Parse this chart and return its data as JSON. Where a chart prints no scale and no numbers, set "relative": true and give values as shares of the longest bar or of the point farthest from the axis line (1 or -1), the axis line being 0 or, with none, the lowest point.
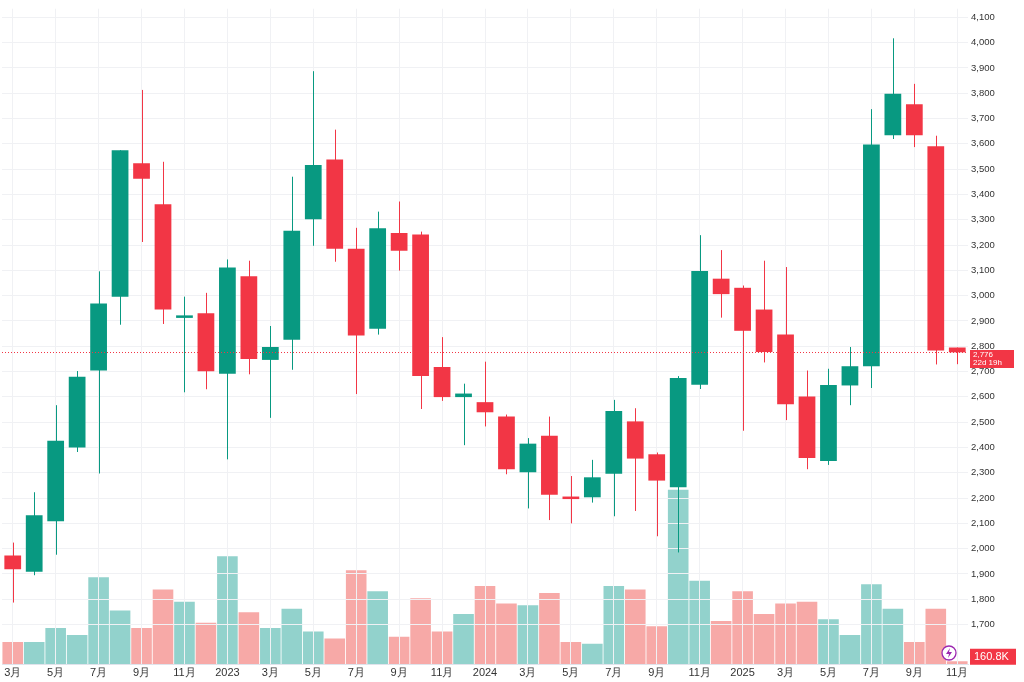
{
  "chart_data": [
    {
      "type": "candlestick",
      "categories": [
        "3月",
        null,
        "5月",
        null,
        "7月",
        null,
        "9月",
        null,
        "11月",
        null,
        "2023",
        null,
        "3月",
        null,
        "5月",
        null,
        "7月",
        null,
        "9月",
        null,
        "11月",
        null,
        "2024",
        null,
        "3月",
        null,
        "5月",
        null,
        "7月",
        null,
        "9月",
        null,
        "11月",
        null,
        "2025",
        null,
        "3月",
        null,
        "5月",
        null,
        "7月",
        null,
        "9月",
        null,
        "11月"
      ],
      "ohlc": [
        [
          1973,
          2024,
          1787,
          1919
        ],
        [
          1909,
          2223,
          1895,
          2132
        ],
        [
          2108,
          2567,
          1976,
          2426
        ],
        [
          2400,
          2702,
          2382,
          2679
        ],
        [
          2704,
          3096,
          2297,
          2969
        ],
        [
          2996,
          3575,
          2885,
          3575
        ],
        [
          3523,
          3813,
          3212,
          3462
        ],
        [
          3361,
          3529,
          2888,
          2945
        ],
        [
          2912,
          2996,
          2618,
          2922
        ],
        [
          2930,
          3011,
          2630,
          2701
        ],
        [
          2691,
          3143,
          2353,
          3111
        ],
        [
          3077,
          3138,
          2689,
          2750
        ],
        [
          2746,
          2880,
          2517,
          2797
        ],
        [
          2826,
          3470,
          2707,
          3256
        ],
        [
          3302,
          3887,
          3197,
          3516
        ],
        [
          3538,
          3656,
          3134,
          3185
        ],
        [
          3185,
          3268,
          2611,
          2842
        ],
        [
          2869,
          3332,
          2846,
          3266
        ],
        [
          3248,
          3372,
          3099,
          3177
        ],
        [
          3242,
          3253,
          2552,
          2682
        ],
        [
          2718,
          2836,
          2584,
          2599
        ],
        [
          2599,
          2652,
          2409,
          2613
        ],
        [
          2579,
          2739,
          2483,
          2539
        ],
        [
          2522,
          2530,
          2294,
          2314
        ],
        [
          2302,
          2437,
          2159,
          2415
        ],
        [
          2446,
          2522,
          2113,
          2213
        ],
        [
          2206,
          2287,
          2100,
          2196
        ],
        [
          2203,
          2351,
          2182,
          2282
        ],
        [
          2296,
          2588,
          2128,
          2544
        ],
        [
          2503,
          2555,
          2149,
          2356
        ],
        [
          2373,
          2380,
          2049,
          2269
        ],
        [
          2243,
          2682,
          1985,
          2674
        ],
        [
          2648,
          3239,
          2631,
          3097
        ],
        [
          3067,
          3180,
          2913,
          3006
        ],
        [
          3031,
          3040,
          2466,
          2861
        ],
        [
          2945,
          3138,
          2736,
          2777
        ],
        [
          2846,
          3113,
          2508,
          2571
        ],
        [
          2601,
          2704,
          2314,
          2358
        ],
        [
          2346,
          2711,
          2331,
          2647
        ],
        [
          2645,
          2797,
          2567,
          2721
        ],
        [
          2721,
          3737,
          2635,
          3597
        ],
        [
          3634,
          4017,
          3619,
          3798
        ],
        [
          3756,
          3837,
          3587,
          3634
        ],
        [
          3590,
          3632,
          2728,
          2783
        ],
        [
          2795,
          2795,
          2729,
          2776
        ]
      ],
      "colors": [
        "#f23645",
        "#089981",
        "#089981",
        "#089981",
        "#089981",
        "#089981",
        "#f23645",
        "#f23645",
        "#089981",
        "#f23645",
        "#089981",
        "#f23645",
        "#089981",
        "#089981",
        "#089981",
        "#f23645",
        "#f23645",
        "#089981",
        "#f23645",
        "#f23645",
        "#f23645",
        "#089981",
        "#f23645",
        "#f23645",
        "#089981",
        "#f23645",
        "#f23645",
        "#089981",
        "#089981",
        "#f23645",
        "#f23645",
        "#089981",
        "#089981",
        "#f23645",
        "#f23645",
        "#f23645",
        "#f23645",
        "#f23645",
        "#089981",
        "#089981",
        "#089981",
        "#089981",
        "#f23645",
        "#f23645",
        "#f23645"
      ],
      "ylim": [
        1541,
        4134
      ],
      "yticks": [
        {
          "value": 1700,
          "label": "1,700"
        },
        {
          "value": 1800,
          "label": "1,800"
        },
        {
          "value": 1900,
          "label": "1,900"
        },
        {
          "value": 2000,
          "label": "2,000"
        },
        {
          "value": 2100,
          "label": "2,100"
        },
        {
          "value": 2200,
          "label": "2,200"
        },
        {
          "value": 2300,
          "label": "2,300"
        },
        {
          "value": 2400,
          "label": "2,400"
        },
        {
          "value": 2500,
          "label": "2,500"
        },
        {
          "value": 2600,
          "label": "2,600"
        },
        {
          "value": 2700,
          "label": "2,700"
        },
        {
          "value": 2800,
          "label": "2,800"
        },
        {
          "value": 2900,
          "label": "2,900"
        },
        {
          "value": 3000,
          "label": "3,000"
        },
        {
          "value": 3100,
          "label": "3,100"
        },
        {
          "value": 3200,
          "label": "3,200"
        },
        {
          "value": 3300,
          "label": "3,300"
        },
        {
          "value": 3400,
          "label": "3,400"
        },
        {
          "value": 3500,
          "label": "3,500"
        },
        {
          "value": 3600,
          "label": "3,600"
        },
        {
          "value": 3700,
          "label": "3,700"
        },
        {
          "value": 3800,
          "label": "3,800"
        },
        {
          "value": 3900,
          "label": "3,900"
        },
        {
          "value": 4000,
          "label": "4,000"
        },
        {
          "value": 4100,
          "label": "4,100"
        }
      ],
      "grid": true,
      "ref_lines": [
        {
          "axis": "y",
          "value": 2776,
          "label": "2,776",
          "color": "#f23645",
          "line_style": "dotted"
        }
      ],
      "annotations": [
        "22d 19h"
      ]
    },
    {
      "type": "bar",
      "relative": true,
      "categories": [
        null,
        null,
        null,
        null,
        null,
        null,
        null,
        null,
        null,
        null,
        null,
        null,
        null,
        null,
        null,
        null,
        null,
        null,
        null,
        null,
        null,
        null,
        null,
        null,
        null,
        null,
        null,
        null,
        null,
        null,
        null,
        null,
        null,
        null,
        null,
        null,
        null,
        null,
        null,
        null,
        null,
        null,
        null,
        null,
        null
      ],
      "values": [
        0.13,
        0.13,
        0.21,
        0.17,
        0.5,
        0.31,
        0.21,
        0.43,
        0.36,
        0.24,
        0.62,
        0.3,
        0.21,
        0.32,
        0.19,
        0.15,
        0.54,
        0.42,
        0.16,
        0.38,
        0.19,
        0.29,
        0.45,
        0.35,
        0.34,
        0.41,
        0.13,
        0.12,
        0.45,
        0.43,
        0.22,
        1,
        0.48,
        0.25,
        0.42,
        0.29,
        0.35,
        0.36,
        0.26,
        0.17,
        0.46,
        0.32,
        0.13,
        0.32,
        0.02
      ],
      "colors": [
        "#f7a9a7",
        "#92d2cc",
        "#92d2cc",
        "#92d2cc",
        "#92d2cc",
        "#92d2cc",
        "#f7a9a7",
        "#f7a9a7",
        "#92d2cc",
        "#f7a9a7",
        "#92d2cc",
        "#f7a9a7",
        "#92d2cc",
        "#92d2cc",
        "#92d2cc",
        "#f7a9a7",
        "#f7a9a7",
        "#92d2cc",
        "#f7a9a7",
        "#f7a9a7",
        "#f7a9a7",
        "#92d2cc",
        "#f7a9a7",
        "#f7a9a7",
        "#92d2cc",
        "#f7a9a7",
        "#f7a9a7",
        "#92d2cc",
        "#92d2cc",
        "#f7a9a7",
        "#f7a9a7",
        "#92d2cc",
        "#92d2cc",
        "#f7a9a7",
        "#f7a9a7",
        "#f7a9a7",
        "#f7a9a7",
        "#f7a9a7",
        "#92d2cc",
        "#92d2cc",
        "#92d2cc",
        "#92d2cc",
        "#f7a9a7",
        "#f7a9a7",
        "#f7a9a7"
      ],
      "annotations": [
        "160.8K"
      ]
    }
  ]
}
